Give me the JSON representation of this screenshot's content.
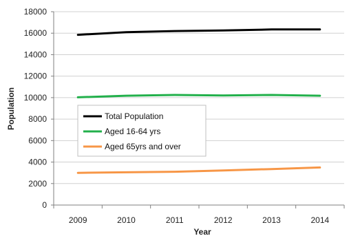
{
  "chart_data": {
    "type": "line",
    "title": "",
    "xlabel": "Year",
    "ylabel": "Population",
    "categories": [
      "2009",
      "2010",
      "2011",
      "2012",
      "2013",
      "2014"
    ],
    "ylim": [
      0,
      18000
    ],
    "yticks": [
      0,
      2000,
      4000,
      6000,
      8000,
      10000,
      12000,
      14000,
      16000,
      18000
    ],
    "grid": true,
    "legend_position": "center-left",
    "series": [
      {
        "name": "Total Population",
        "color": "#000000",
        "values": [
          15850,
          16100,
          16200,
          16250,
          16350,
          16350
        ]
      },
      {
        "name": "Aged 16-64 yrs",
        "color": "#22b04b",
        "values": [
          10030,
          10180,
          10250,
          10200,
          10250,
          10180
        ]
      },
      {
        "name": "Aged 65yrs and over",
        "color": "#f79646",
        "values": [
          3000,
          3050,
          3100,
          3220,
          3350,
          3500
        ]
      }
    ]
  }
}
